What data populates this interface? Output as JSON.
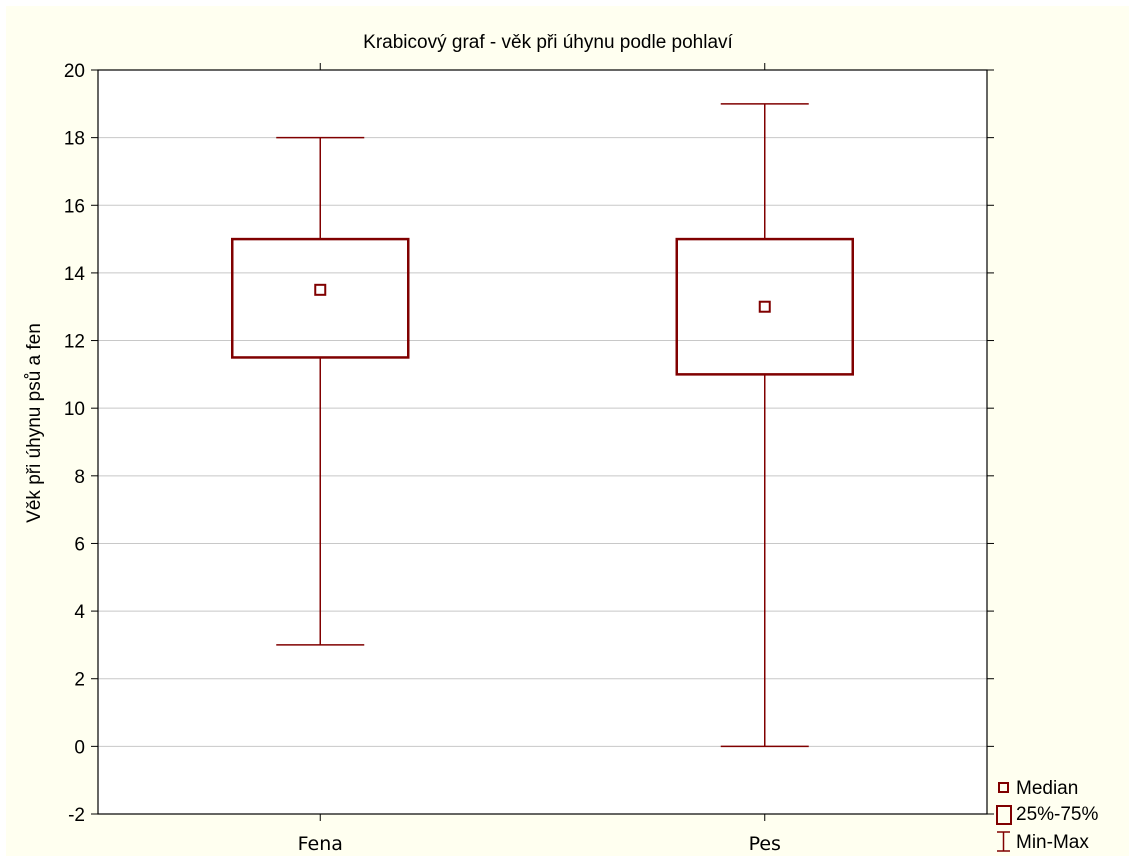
{
  "colors": {
    "series": "#800000",
    "grid": "#c8c8c8",
    "frame": "#fffff0"
  },
  "chart_data": {
    "type": "boxplot",
    "title": "Krabicový graf - věk při úhynu podle pohlaví",
    "xlabel": "",
    "ylabel": "Věk při úhynu psů a fen",
    "ylim": [
      -2,
      20
    ],
    "yticks": [
      -2,
      0,
      2,
      4,
      6,
      8,
      10,
      12,
      14,
      16,
      18,
      20
    ],
    "grid": true,
    "legend_position": "bottom-right outside",
    "categories": [
      "Fena",
      "Pes"
    ],
    "boxes": [
      {
        "category": "Fena",
        "min": 3,
        "q1": 11.5,
        "median": 13.5,
        "q3": 15,
        "max": 18
      },
      {
        "category": "Pes",
        "min": 0,
        "q1": 11,
        "median": 13,
        "q3": 15,
        "max": 19
      }
    ],
    "legend": [
      "Median",
      "25%-75%",
      "Min-Max"
    ]
  }
}
